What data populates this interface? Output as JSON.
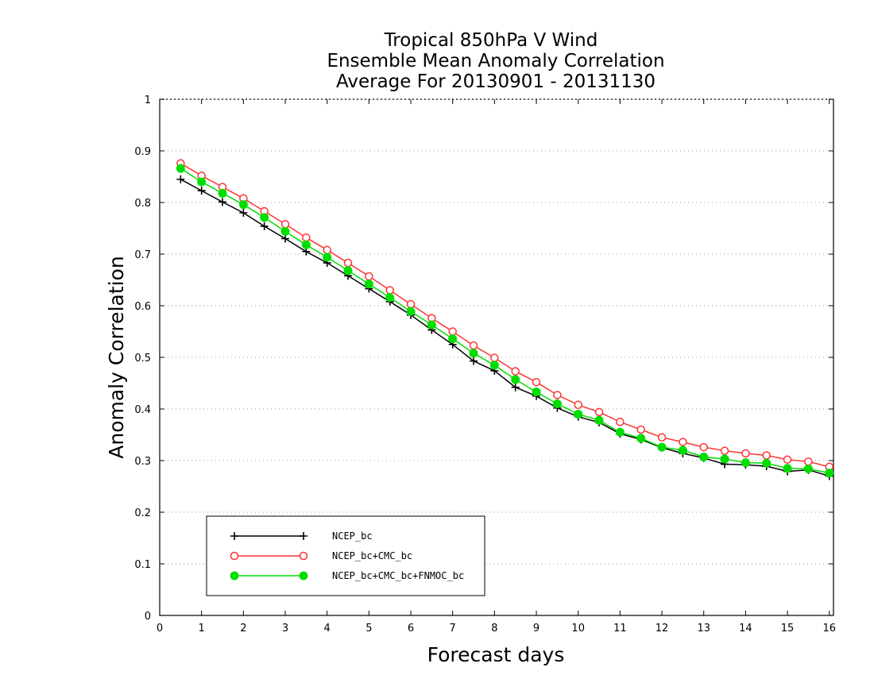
{
  "chart_data": {
    "type": "line",
    "title": [
      "Tropical 850hPa V Wind",
      "Ensemble Mean Anomaly Correlation",
      "Average For 20130901 - 20131130"
    ],
    "xlabel": "Forecast days",
    "ylabel": "Anomaly Correlation",
    "xlim": [
      0,
      16.1
    ],
    "ylim": [
      0,
      1
    ],
    "xticks": [
      "0",
      "1",
      "2",
      "3",
      "4",
      "5",
      "6",
      "7",
      "8",
      "9",
      "10",
      "11",
      "12",
      "13",
      "14",
      "15",
      "16"
    ],
    "yticks": [
      "0",
      "0.1",
      "0.2",
      "0.3",
      "0.4",
      "0.5",
      "0.6",
      "0.7",
      "0.8",
      "0.9",
      "1"
    ],
    "grid": "horizontal dotted",
    "legend_position": "bottom-left",
    "x": [
      0.5,
      1,
      1.5,
      2,
      2.5,
      3,
      3.5,
      4,
      4.5,
      5,
      5.5,
      6,
      6.5,
      7,
      7.5,
      8,
      8.5,
      9,
      9.5,
      10,
      10.5,
      11,
      11.5,
      12,
      12.5,
      13,
      13.5,
      14,
      14.5,
      15,
      15.5,
      16
    ],
    "series": [
      {
        "name": "NCEP_bc",
        "color": "#000000",
        "marker": "plus",
        "values": [
          0.845,
          0.823,
          0.801,
          0.78,
          0.754,
          0.73,
          0.705,
          0.683,
          0.658,
          0.633,
          0.608,
          0.582,
          0.553,
          0.525,
          0.493,
          0.474,
          0.442,
          0.425,
          0.402,
          0.385,
          0.374,
          0.352,
          0.341,
          0.325,
          0.314,
          0.305,
          0.293,
          0.292,
          0.289,
          0.279,
          0.282,
          0.27
        ]
      },
      {
        "name": "NCEP_bc+CMC_bc",
        "color": "#ff3333",
        "marker": "open-circle",
        "values": [
          0.876,
          0.852,
          0.83,
          0.808,
          0.783,
          0.758,
          0.732,
          0.708,
          0.683,
          0.657,
          0.63,
          0.603,
          0.576,
          0.55,
          0.523,
          0.499,
          0.473,
          0.452,
          0.427,
          0.408,
          0.394,
          0.375,
          0.36,
          0.345,
          0.336,
          0.326,
          0.319,
          0.314,
          0.31,
          0.302,
          0.298,
          0.288
        ]
      },
      {
        "name": "NCEP_bc+CMC_bc+FNMOC_bc",
        "color": "#00dd00",
        "marker": "filled-circle",
        "values": [
          0.866,
          0.84,
          0.818,
          0.796,
          0.771,
          0.744,
          0.718,
          0.694,
          0.668,
          0.642,
          0.616,
          0.589,
          0.563,
          0.536,
          0.508,
          0.485,
          0.457,
          0.433,
          0.41,
          0.39,
          0.378,
          0.355,
          0.343,
          0.326,
          0.32,
          0.307,
          0.303,
          0.296,
          0.295,
          0.285,
          0.284,
          0.276
        ]
      }
    ]
  }
}
